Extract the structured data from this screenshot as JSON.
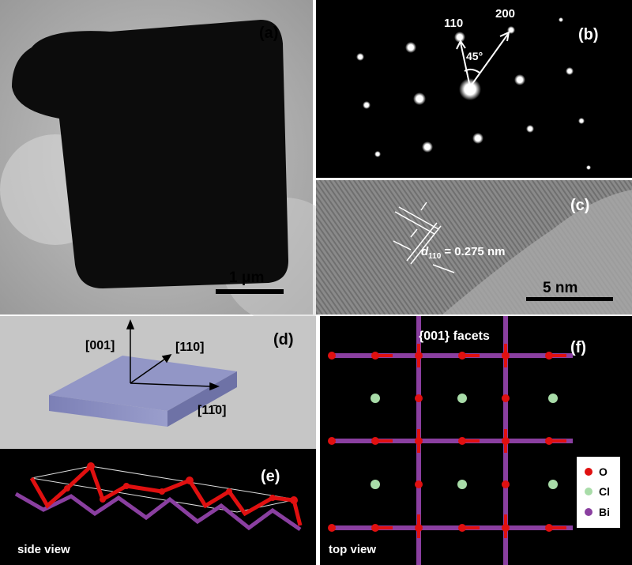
{
  "panels": {
    "a": {
      "label": "(a)",
      "scale_bar": "1 μm"
    },
    "b": {
      "label": "(b)",
      "spot_1": "110",
      "spot_2": "200",
      "angle": "45°"
    },
    "c": {
      "label": "(c)",
      "spacing_symbol": "d",
      "spacing_subscript": "110",
      "spacing_value": "= 0.275 nm",
      "scale_bar": "5 nm"
    },
    "d": {
      "label": "(d)",
      "axis_z": "[001]",
      "axis_diag": "[110]",
      "axis_x": "[11̄0]"
    },
    "e": {
      "label": "(e)",
      "caption": "side view"
    },
    "f": {
      "label": "(f)",
      "title": "{001} facets",
      "caption": "top view",
      "legend": [
        {
          "label": "O"
        },
        {
          "label": "Cl"
        },
        {
          "label": "Bi"
        }
      ]
    }
  }
}
